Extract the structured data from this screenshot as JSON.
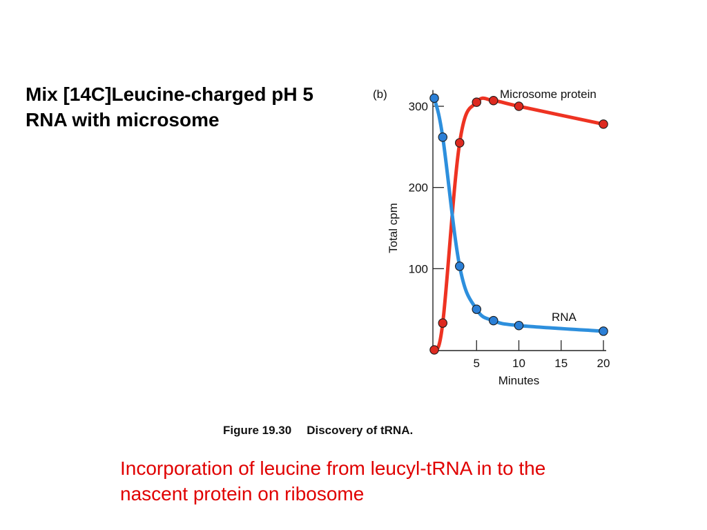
{
  "slide": {
    "heading_lines": [
      "Mix [14C]Leucine-charged pH 5",
      "RNA with microsome"
    ],
    "note_lines": [
      "Incorporation of leucine from leucyl-tRNA in to the",
      "nascent protein on ribosome"
    ],
    "note_color": "#e00000"
  },
  "figure": {
    "number": "Figure 19.30",
    "title": "Discovery of tRNA."
  },
  "chart_data": {
    "type": "line",
    "panel_label": "(b)",
    "xlabel": "Minutes",
    "ylabel": "Total  cpm",
    "xlim": [
      0,
      20
    ],
    "ylim": [
      0,
      320
    ],
    "x_ticks": [
      5,
      10,
      15,
      20
    ],
    "x_tick_labels": [
      "5",
      "10",
      "15",
      "20"
    ],
    "y_ticks": [
      100,
      200,
      300
    ],
    "y_tick_labels": [
      "100",
      "200",
      "300"
    ],
    "grid": false,
    "series": [
      {
        "name": "Microsome protein",
        "color": "#ee3322",
        "marker_color": "#dd2a20",
        "x": [
          0,
          1,
          3,
          5,
          7,
          10,
          20
        ],
        "y": [
          0,
          33,
          255,
          305,
          307,
          300,
          278
        ]
      },
      {
        "name": "RNA",
        "color": "#2d8fdd",
        "marker_color": "#2b7fd6",
        "x": [
          0,
          1,
          3,
          5,
          7,
          10,
          20
        ],
        "y": [
          310,
          262,
          103,
          50,
          36,
          30,
          23
        ]
      }
    ]
  }
}
